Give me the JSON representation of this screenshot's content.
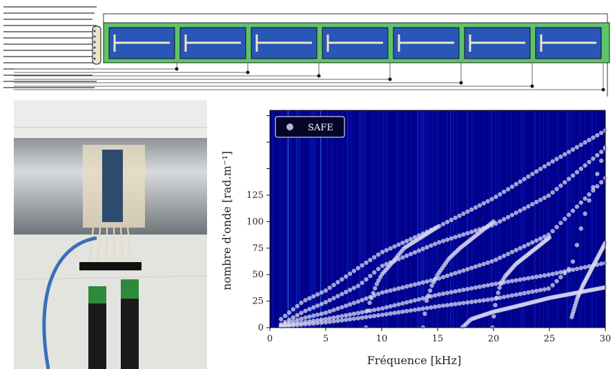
{
  "chart_data": {
    "type": "scatter",
    "background": "heatmap",
    "xlabel": "Fréquence [kHz]",
    "ylabel": "nombre d'onde [rad.m⁻¹]",
    "xlim": [
      0,
      30
    ],
    "ylim": [
      0,
      205
    ],
    "xticks": [
      "0",
      "5",
      "10",
      "15",
      "20",
      "25",
      "30"
    ],
    "yticks": [
      "0",
      "25",
      "50",
      "75",
      "100",
      "125"
    ],
    "unlabeled_yticks": [
      150,
      175,
      200
    ],
    "legend": {
      "label": "SAFE",
      "placement": "top-left"
    },
    "grid": false,
    "colors": {
      "background": "#00008b",
      "points": "#d8d8f0",
      "heat_bright": "#00c8ff"
    },
    "series": [
      {
        "x": [
          1,
          3,
          5,
          8,
          10,
          15,
          20,
          25,
          30
        ],
        "y": [
          8,
          25,
          35,
          57,
          71,
          95,
          122,
          155,
          186
        ]
      },
      {
        "x": [
          1,
          3,
          5,
          8,
          10,
          15,
          20,
          25,
          30
        ],
        "y": [
          3,
          15,
          24,
          40,
          58,
          80,
          97,
          125,
          169
        ]
      },
      {
        "x": [
          1,
          3,
          5,
          8,
          10,
          15,
          20,
          25,
          30
        ],
        "y": [
          2,
          9,
          14,
          25,
          33,
          46,
          63,
          88,
          141
        ]
      },
      {
        "x": [
          1,
          3,
          5,
          8,
          10,
          15,
          20,
          25,
          30
        ],
        "y": [
          1,
          5,
          8,
          14,
          18,
          31,
          41,
          50,
          61
        ]
      },
      {
        "x": [
          1,
          3,
          5,
          8,
          10,
          15,
          20,
          25,
          27,
          28,
          30
        ],
        "y": [
          1,
          3,
          5,
          9,
          12,
          20,
          27,
          37,
          58,
          101,
          170
        ]
      },
      {
        "x": [
          8.6,
          8.8,
          9.5,
          10,
          11,
          12,
          15
        ],
        "y": [
          0,
          20,
          40,
          50,
          62,
          75,
          95
        ]
      },
      {
        "x": [
          13.7,
          14,
          14.5,
          15,
          16,
          17,
          20
        ],
        "y": [
          0,
          25,
          40,
          50,
          65,
          75,
          100
        ]
      },
      {
        "x": [
          19.9,
          20.2,
          20.6,
          21,
          22,
          25
        ],
        "y": [
          0,
          25,
          40,
          48,
          60,
          85
        ]
      },
      {
        "x": [
          17.2,
          18,
          20,
          22,
          25,
          28,
          30
        ],
        "y": [
          0,
          8,
          15,
          20,
          28,
          34,
          38
        ]
      },
      {
        "x": [
          27,
          27.5,
          28,
          28.5,
          29,
          30
        ],
        "y": [
          10,
          28,
          40,
          50,
          60,
          80
        ]
      }
    ]
  }
}
